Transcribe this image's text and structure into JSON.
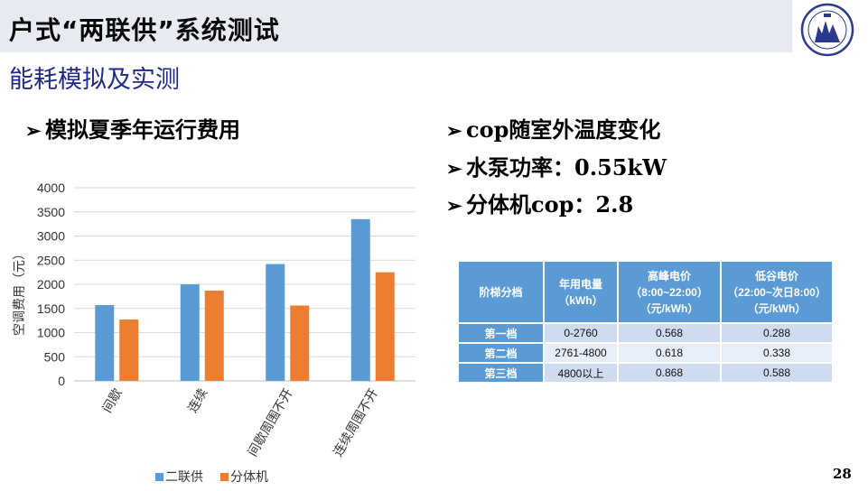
{
  "header": {
    "title": "户式“两联供”系统测试",
    "subtitle": "能耗模拟及实测"
  },
  "bullets": {
    "marker": "➢",
    "left": "模拟夏季年运行费用",
    "right": [
      "cop随室外温度变化",
      "水泵功率：0.55kW",
      "分体机cop：2.8"
    ]
  },
  "chart_data": {
    "type": "bar",
    "categories": [
      "间歇",
      "连续",
      "间歇周围不开",
      "连续周围不开"
    ],
    "series": [
      {
        "name": "二联供",
        "color": "#5b9bd5",
        "values": [
          1570,
          2000,
          2420,
          3350
        ]
      },
      {
        "name": "分体机",
        "color": "#ed7d31",
        "values": [
          1270,
          1870,
          1560,
          2250
        ]
      }
    ],
    "ylabel": "空调费用（元）",
    "ylim": [
      0,
      4000
    ],
    "yticks": [
      0,
      500,
      1000,
      1500,
      2000,
      2500,
      3000,
      3500,
      4000
    ],
    "grid": true,
    "legend_position": "bottom"
  },
  "table": {
    "headers": [
      "阶梯分档",
      "年用电量\n（kWh）",
      "高峰电价\n（8:00~22:00）\n（元/kWh）",
      "低谷电价\n（22:00~次日8:00）\n（元/kWh）"
    ],
    "rows": [
      {
        "tier": "第一档",
        "usage": "0-2760",
        "peak": "0.568",
        "valley": "0.288"
      },
      {
        "tier": "第二档",
        "usage": "2761-4800",
        "peak": "0.618",
        "valley": "0.338"
      },
      {
        "tier": "第三档",
        "usage": "4800以上",
        "peak": "0.868",
        "valley": "0.588"
      }
    ],
    "header_color": "#5b9bd5"
  },
  "page_number": "28"
}
